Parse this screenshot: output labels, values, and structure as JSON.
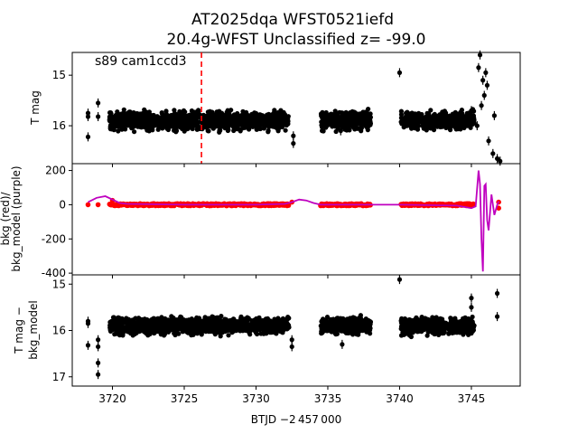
{
  "title": {
    "line1": "AT2025dqa  WFST0521iefd",
    "line2": "20.4g-WFST Unclassified z= -99.0"
  },
  "annotation": "s89 cam1ccd3",
  "xlabel": "BTJD −2 457 000",
  "colors": {
    "points": "#000000",
    "bkg_points": "#ff0000",
    "bkg_model": "#bf00bf",
    "marker_line": "#ff0000"
  },
  "chart_data": [
    {
      "type": "scatter",
      "panel": "top",
      "ylabel": "T mag",
      "yticks": [
        15,
        16
      ],
      "ylim": [
        16.75,
        14.55
      ],
      "xlim": [
        3717.2,
        3748.4
      ],
      "xticks": [
        3720,
        3725,
        3730,
        3735,
        3740,
        3745
      ],
      "vline_x": 3726.2,
      "segments": [
        {
          "x": [
            3719.8,
            3732.3
          ],
          "y": 15.9,
          "scatter": 0.12
        },
        {
          "x": [
            3734.5,
            3738.0
          ],
          "y": 15.9,
          "scatter": 0.12
        },
        {
          "x": [
            3740.1,
            3745.2
          ],
          "y": 15.9,
          "scatter": 0.12
        }
      ],
      "extra_points": [
        [
          3718.3,
          15.75
        ],
        [
          3718.3,
          15.82
        ],
        [
          3718.3,
          16.22
        ],
        [
          3719.0,
          15.55
        ],
        [
          3719.0,
          15.82
        ],
        [
          3732.6,
          16.2
        ],
        [
          3732.6,
          16.35
        ],
        [
          3735.9,
          16.1
        ],
        [
          3740.0,
          14.95
        ],
        [
          3745.0,
          15.7
        ],
        [
          3745.5,
          14.85
        ],
        [
          3745.6,
          14.6
        ],
        [
          3745.8,
          15.1
        ],
        [
          3745.9,
          15.4
        ],
        [
          3746.0,
          14.95
        ],
        [
          3746.1,
          15.2
        ],
        [
          3745.7,
          15.6
        ],
        [
          3745.4,
          16.0
        ],
        [
          3746.2,
          16.3
        ],
        [
          3746.5,
          16.55
        ],
        [
          3746.8,
          16.65
        ],
        [
          3747.0,
          16.7
        ],
        [
          3746.6,
          15.8
        ]
      ]
    },
    {
      "type": "line",
      "panel": "middle",
      "ylabel_lines": [
        "bkg (red)/",
        "bkg_model (purple)"
      ],
      "yticks": [
        200,
        0,
        -200,
        -400
      ],
      "ylim": [
        -410,
        240
      ],
      "bkg_segments": [
        {
          "x": [
            3719.8,
            3732.3
          ],
          "y": 0
        },
        {
          "x": [
            3734.5,
            3738.0
          ],
          "y": 0
        },
        {
          "x": [
            3740.1,
            3745.2
          ],
          "y": 0
        }
      ],
      "bkg_extra": [
        [
          3718.3,
          0
        ],
        [
          3719.0,
          0
        ],
        [
          3720.0,
          25
        ],
        [
          3732.5,
          15
        ],
        [
          3746.9,
          15
        ],
        [
          3746.9,
          -20
        ]
      ],
      "model": {
        "x": [
          3718.3,
          3718.9,
          3719.5,
          3720.0,
          3720.5,
          3721.0,
          3725,
          3730,
          3732.0,
          3732.5,
          3733.0,
          3733.5,
          3734.0,
          3734.5,
          3738.0,
          3740.0,
          3744.0,
          3745.0,
          3745.3,
          3745.5,
          3745.6,
          3745.7,
          3745.8,
          3745.9,
          3746.0,
          3746.1,
          3746.2,
          3746.4,
          3746.6,
          3746.8,
          3746.9
        ],
        "y": [
          15,
          40,
          50,
          30,
          10,
          5,
          0,
          0,
          5,
          15,
          30,
          25,
          10,
          0,
          0,
          0,
          -5,
          -20,
          -10,
          200,
          120,
          -200,
          -390,
          110,
          120,
          -90,
          -150,
          60,
          -60,
          0,
          20
        ]
      }
    },
    {
      "type": "scatter",
      "panel": "bottom",
      "ylabel_lines": [
        "T mag −",
        "bkg_model"
      ],
      "yticks": [
        15,
        16,
        17
      ],
      "ylim": [
        17.2,
        14.8
      ],
      "segments": [
        {
          "x": [
            3719.8,
            3732.3
          ],
          "y": 15.9,
          "scatter": 0.12
        },
        {
          "x": [
            3734.5,
            3738.0
          ],
          "y": 15.9,
          "scatter": 0.12
        },
        {
          "x": [
            3740.1,
            3745.2
          ],
          "y": 15.9,
          "scatter": 0.12
        }
      ],
      "extra_points": [
        [
          3718.3,
          15.8
        ],
        [
          3718.3,
          15.85
        ],
        [
          3718.3,
          16.32
        ],
        [
          3719.0,
          16.2
        ],
        [
          3719.0,
          16.35
        ],
        [
          3719.0,
          16.7
        ],
        [
          3719.0,
          16.95
        ],
        [
          3732.5,
          16.2
        ],
        [
          3732.5,
          16.35
        ],
        [
          3736.0,
          16.3
        ],
        [
          3740.0,
          14.9
        ],
        [
          3745.0,
          15.3
        ],
        [
          3745.0,
          15.5
        ],
        [
          3746.8,
          15.2
        ],
        [
          3746.8,
          15.7
        ]
      ]
    }
  ]
}
